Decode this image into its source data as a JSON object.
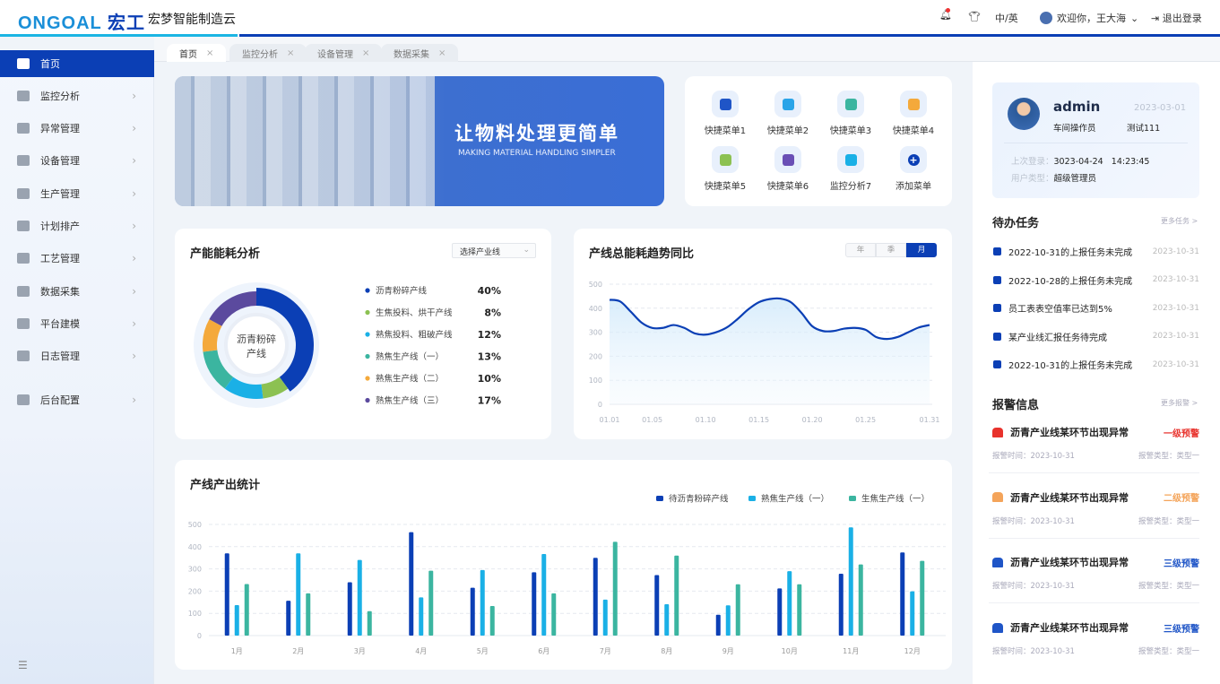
{
  "header": {
    "logo": "ONGOAL 宏工",
    "app_name": "宏梦智能制造云",
    "lang": "中/英",
    "welcome": "欢迎你，王大海",
    "logout": "退出登录"
  },
  "sidebar": {
    "items": [
      {
        "label": "首页",
        "icon": "home-icon"
      },
      {
        "label": "监控分析",
        "icon": "monitor-icon"
      },
      {
        "label": "异常管理",
        "icon": "list-icon"
      },
      {
        "label": "设备管理",
        "icon": "pie-icon"
      },
      {
        "label": "生产管理",
        "icon": "grid-icon"
      },
      {
        "label": "计划排产",
        "icon": "folder-icon"
      },
      {
        "label": "工艺管理",
        "icon": "book-icon"
      },
      {
        "label": "数据采集",
        "icon": "chart-icon"
      },
      {
        "label": "平台建模",
        "icon": "cube-icon"
      },
      {
        "label": "日志管理",
        "icon": "log-icon"
      },
      {
        "label": "后台配置",
        "icon": "settings-icon"
      }
    ]
  },
  "tabs": [
    {
      "label": "首页"
    },
    {
      "label": "监控分析"
    },
    {
      "label": "设备管理"
    },
    {
      "label": "数据采集"
    }
  ],
  "banner": {
    "title": "让物料处理更简单",
    "subtitle": "MAKING MATERIAL HANDLING SIMPLER"
  },
  "quick_menu": [
    {
      "label": "快捷菜单1",
      "color": "#1f55c7"
    },
    {
      "label": "快捷菜单2",
      "color": "#2aa4e8"
    },
    {
      "label": "快捷菜单3",
      "color": "#3bb5a0"
    },
    {
      "label": "快捷菜单4",
      "color": "#f4a93b"
    },
    {
      "label": "快捷菜单5",
      "color": "#8cc152"
    },
    {
      "label": "快捷菜单6",
      "color": "#6a4fb5"
    },
    {
      "label": "监控分析7",
      "color": "#1ab0e6"
    },
    {
      "label": "添加菜单",
      "color": "#0b3fb5"
    }
  ],
  "user": {
    "name": "admin",
    "date": "2023-03-01",
    "role": "车间操作员",
    "group": "测试111",
    "last_login_label": "上次登录：",
    "last_login": "3023-04-24   14:23:45",
    "type_label": "用户类型：",
    "type": "超级管理员"
  },
  "tasks": {
    "title": "待办任务",
    "more": "更多任务 >",
    "items": [
      {
        "text": "2022-10-31的上报任务未完成",
        "date": "2023-10-31"
      },
      {
        "text": "2022-10-28的上报任务未完成",
        "date": "2023-10-31"
      },
      {
        "text": "员工表表空值率已达到5%",
        "date": "2023-10-31"
      },
      {
        "text": "某产业线汇报任务待完成",
        "date": "2023-10-31"
      },
      {
        "text": "2022-10-31的上报任务未完成",
        "date": "2023-10-31"
      }
    ]
  },
  "alerts": {
    "title": "报警信息",
    "more": "更多报警 >",
    "items": [
      {
        "text": "沥青产业线某环节出现异常",
        "level": "一级预警",
        "color": "#e8322c",
        "time": "报警时间：2023-10-31",
        "type": "报警类型：类型一"
      },
      {
        "text": "沥青产业线某环节出现异常",
        "level": "二级预警",
        "color": "#f4a45a",
        "time": "报警时间：2023-10-31",
        "type": "报警类型：类型一"
      },
      {
        "text": "沥青产业线某环节出现异常",
        "level": "三级预警",
        "color": "#1f55c7",
        "time": "报警时间：2023-10-31",
        "type": "报警类型：类型一"
      },
      {
        "text": "沥青产业线某环节出现异常",
        "level": "三级预警",
        "color": "#1f55c7",
        "time": "报警时间：2023-10-31",
        "type": "报警类型：类型一"
      }
    ]
  },
  "energy": {
    "title": "产能能耗分析",
    "select_placeholder": "选择产业线",
    "center_label": "沥青粉碎产线"
  },
  "trend": {
    "title": "产线总能耗趋势同比",
    "periods": [
      "年",
      "季",
      "月"
    ],
    "active_period": "月"
  },
  "output": {
    "title": "产线产出统计"
  },
  "chart_data": [
    {
      "type": "pie",
      "donut": true,
      "categories": [
        "沥青粉碎产线",
        "生焦投料、烘干产线",
        "熟焦投料、粗破产线",
        "熟焦生产线（一）",
        "熟焦生产线（二）",
        "熟焦生产线（三）"
      ],
      "values": [
        40,
        8,
        12,
        13,
        10,
        17
      ],
      "labels": [
        "40%",
        "8%",
        "12%",
        "13%",
        "10%",
        "17%"
      ],
      "colors": [
        "#0b3fb5",
        "#8cc152",
        "#1ab0e6",
        "#3bb5a0",
        "#f4a93b",
        "#5b4a9e"
      ],
      "legend": "right"
    },
    {
      "type": "area",
      "x": [
        "01.01",
        "01.02",
        "01.03",
        "01.04",
        "01.05",
        "01.06",
        "01.07",
        "01.08",
        "01.09",
        "01.10",
        "01.11",
        "01.12",
        "01.13",
        "01.14",
        "01.15",
        "01.16",
        "01.17",
        "01.18",
        "01.19",
        "01.20",
        "01.21",
        "01.22",
        "01.23",
        "01.24",
        "01.25",
        "01.26",
        "01.27",
        "01.28",
        "01.29",
        "01.30",
        "01.31"
      ],
      "values": [
        435,
        428,
        385,
        340,
        318,
        318,
        330,
        318,
        295,
        290,
        300,
        320,
        355,
        395,
        425,
        438,
        440,
        425,
        380,
        325,
        305,
        305,
        315,
        318,
        310,
        280,
        272,
        280,
        300,
        320,
        330
      ],
      "xticks": [
        "01.01",
        "01.05",
        "01.10",
        "01.15",
        "01.20",
        "01.25",
        "01.31"
      ],
      "yticks": [
        0,
        100,
        200,
        300,
        400,
        500
      ],
      "ylim": [
        0,
        500
      ],
      "grid": true,
      "color": "#0b3fb5"
    },
    {
      "type": "bar",
      "categories": [
        "1月",
        "2月",
        "3月",
        "4月",
        "5月",
        "6月",
        "7月",
        "8月",
        "9月",
        "10月",
        "11月",
        "12月"
      ],
      "series": [
        {
          "name": "待沥青粉碎产线",
          "color": "#0b3fb5",
          "values": [
            370,
            157,
            240,
            465,
            215,
            285,
            350,
            272,
            94,
            212,
            278,
            374
          ]
        },
        {
          "name": "熟焦生产线（一）",
          "color": "#1ab0e6",
          "values": [
            137,
            370,
            340,
            172,
            295,
            367,
            162,
            141,
            136,
            290,
            487,
            199
          ]
        },
        {
          "name": "生焦生产线（一）",
          "color": "#3bb5a0",
          "values": [
            232,
            190,
            110,
            292,
            133,
            190,
            422,
            360,
            231,
            231,
            320,
            336
          ]
        }
      ],
      "yticks": [
        0,
        100,
        200,
        300,
        400,
        500
      ],
      "ylim": [
        0,
        500
      ],
      "grid": true,
      "legend": "top-right"
    }
  ]
}
